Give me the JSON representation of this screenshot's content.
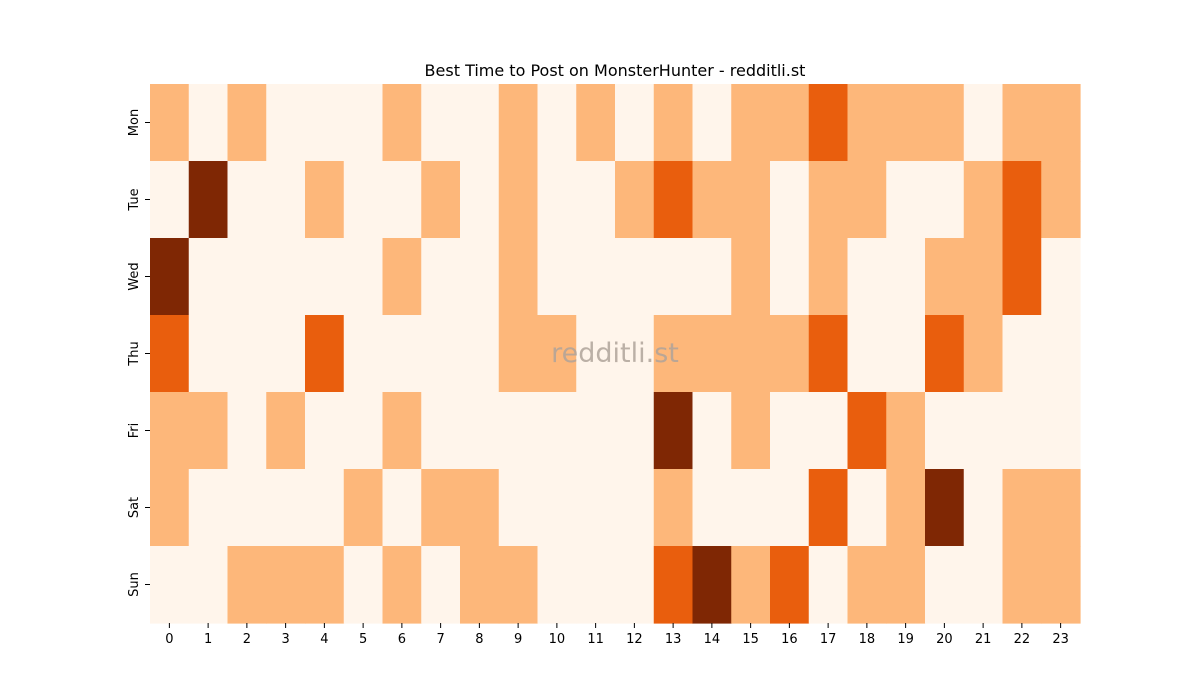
{
  "chart_data": {
    "type": "heatmap",
    "title": "Best Time to Post on MonsterHunter - redditli.st",
    "watermark": "redditli.st",
    "xlabel": "",
    "ylabel": "",
    "x_categories": [
      "0",
      "1",
      "2",
      "3",
      "4",
      "5",
      "6",
      "7",
      "8",
      "9",
      "10",
      "11",
      "12",
      "13",
      "14",
      "15",
      "16",
      "17",
      "18",
      "19",
      "20",
      "21",
      "22",
      "23"
    ],
    "y_categories": [
      "Mon",
      "Tue",
      "Wed",
      "Thu",
      "Fri",
      "Sat",
      "Sun"
    ],
    "values": [
      [
        1,
        0,
        1,
        0,
        0,
        0,
        1,
        0,
        0,
        1,
        0,
        1,
        0,
        1,
        0,
        1,
        1,
        2,
        1,
        1,
        1,
        0,
        1,
        1
      ],
      [
        0,
        3,
        0,
        0,
        1,
        0,
        0,
        1,
        0,
        1,
        0,
        0,
        1,
        2,
        1,
        1,
        0,
        1,
        1,
        0,
        0,
        1,
        2,
        1
      ],
      [
        3,
        0,
        0,
        0,
        0,
        0,
        1,
        0,
        0,
        1,
        0,
        0,
        0,
        0,
        0,
        1,
        0,
        1,
        0,
        0,
        1,
        1,
        2,
        0
      ],
      [
        2,
        0,
        0,
        0,
        2,
        0,
        0,
        0,
        0,
        1,
        1,
        0,
        0,
        1,
        1,
        1,
        1,
        2,
        0,
        0,
        2,
        1,
        0,
        0
      ],
      [
        1,
        1,
        0,
        1,
        0,
        0,
        1,
        0,
        0,
        0,
        0,
        0,
        0,
        3,
        0,
        1,
        0,
        0,
        2,
        1,
        0,
        0,
        0,
        0
      ],
      [
        1,
        0,
        0,
        0,
        0,
        1,
        0,
        1,
        1,
        0,
        0,
        0,
        0,
        1,
        0,
        0,
        0,
        2,
        0,
        1,
        3,
        0,
        1,
        1
      ],
      [
        0,
        0,
        1,
        1,
        1,
        0,
        1,
        0,
        1,
        1,
        0,
        0,
        0,
        2,
        3,
        1,
        2,
        0,
        1,
        1,
        0,
        0,
        1,
        1
      ]
    ],
    "colorscale": [
      "#fff5eb",
      "#fdb77a",
      "#e95e0d",
      "#7f2704"
    ],
    "colorbar": false,
    "grid": false
  }
}
